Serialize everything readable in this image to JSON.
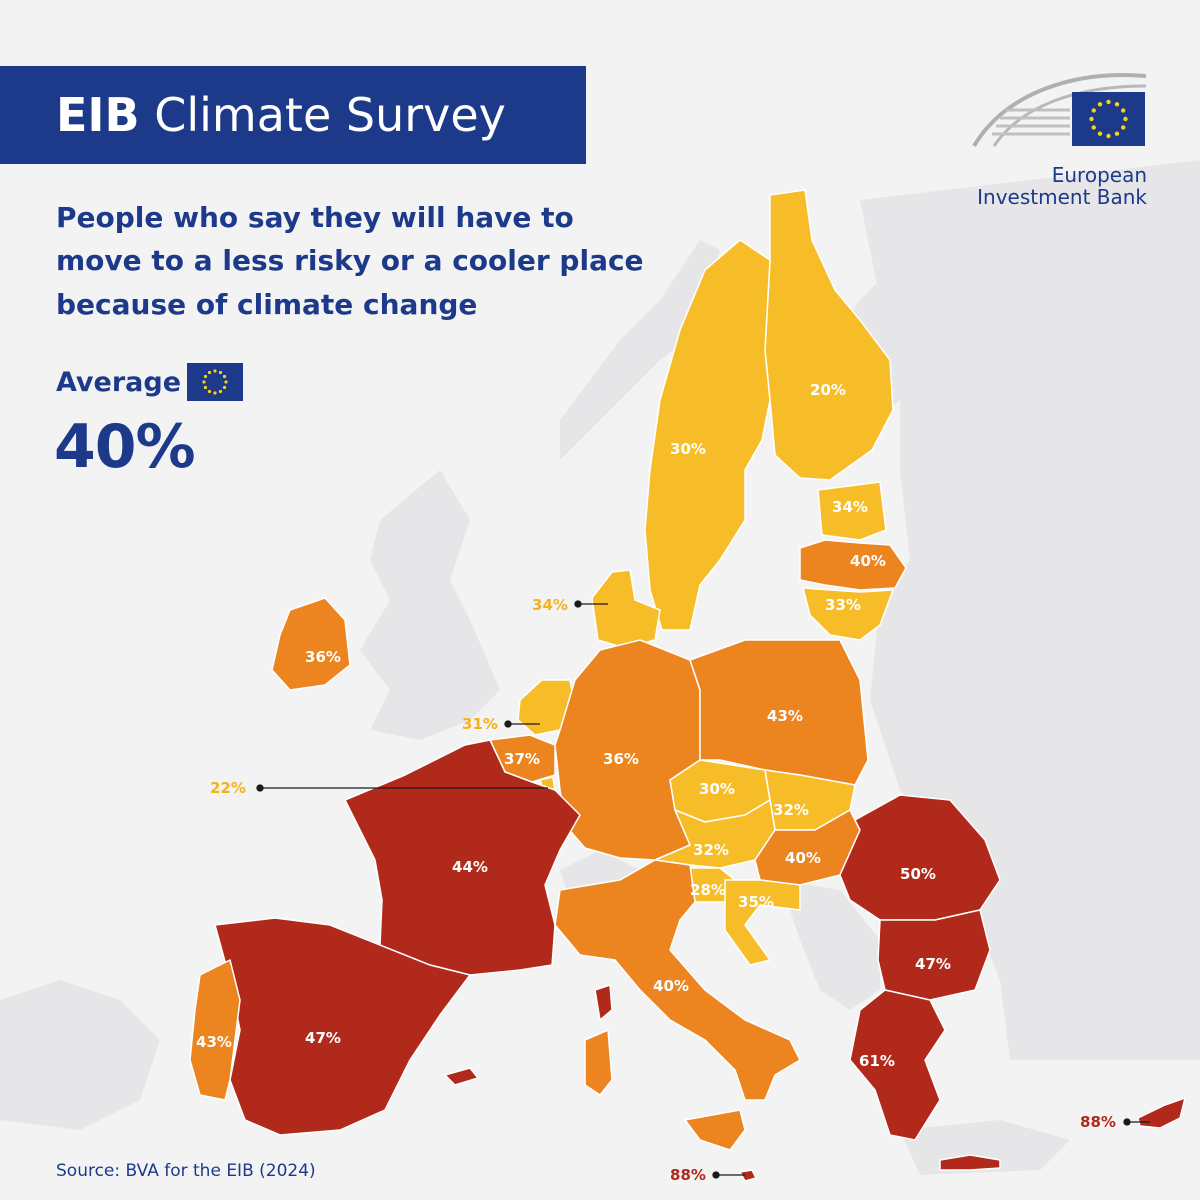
{
  "header": {
    "title_bold": "EIB",
    "title_rest": "Climate Survey"
  },
  "subtitle": "People who say they will have to move to a less risky or a cooler place because of climate change",
  "average": {
    "label": "Average",
    "value": "40%",
    "flag_icon": "eu-flag-icon"
  },
  "source": "Source: BVA for the EIB (2024)",
  "logo": {
    "name": "European Investment Bank"
  },
  "colors": {
    "title_bg": "#1d3a8a",
    "text_blue": "#1d3a8a",
    "background_land": "#e6e6e8",
    "sea": "#f3f3f4",
    "low_band": "#f7bd28",
    "mid_band": "#ec8420",
    "high_band": "#b1291a"
  },
  "countries": [
    {
      "id": "finland",
      "value": "20%",
      "band": "low"
    },
    {
      "id": "sweden",
      "value": "30%",
      "band": "low"
    },
    {
      "id": "estonia",
      "value": "34%",
      "band": "low"
    },
    {
      "id": "latvia",
      "value": "40%",
      "band": "mid"
    },
    {
      "id": "lithuania",
      "value": "33%",
      "band": "low"
    },
    {
      "id": "denmark",
      "value": "34%",
      "band": "low"
    },
    {
      "id": "ireland",
      "value": "36%",
      "band": "mid"
    },
    {
      "id": "netherlands",
      "value": "31%",
      "band": "low"
    },
    {
      "id": "belgium",
      "value": "37%",
      "band": "mid"
    },
    {
      "id": "luxembourg",
      "value": "22%",
      "band": "low"
    },
    {
      "id": "germany",
      "value": "36%",
      "band": "mid"
    },
    {
      "id": "poland",
      "value": "43%",
      "band": "mid"
    },
    {
      "id": "czechia",
      "value": "30%",
      "band": "low"
    },
    {
      "id": "slovakia",
      "value": "32%",
      "band": "low"
    },
    {
      "id": "austria",
      "value": "32%",
      "band": "low"
    },
    {
      "id": "hungary",
      "value": "40%",
      "band": "mid"
    },
    {
      "id": "slovenia",
      "value": "28%",
      "band": "low"
    },
    {
      "id": "croatia",
      "value": "35%",
      "band": "low"
    },
    {
      "id": "romania",
      "value": "50%",
      "band": "high"
    },
    {
      "id": "bulgaria",
      "value": "47%",
      "band": "high"
    },
    {
      "id": "greece",
      "value": "61%",
      "band": "high"
    },
    {
      "id": "cyprus",
      "value": "88%",
      "band": "high"
    },
    {
      "id": "malta",
      "value": "88%",
      "band": "high"
    },
    {
      "id": "france",
      "value": "44%",
      "band": "high"
    },
    {
      "id": "spain",
      "value": "47%",
      "band": "high"
    },
    {
      "id": "portugal",
      "value": "43%",
      "band": "mid"
    },
    {
      "id": "italy",
      "value": "40%",
      "band": "mid"
    }
  ]
}
